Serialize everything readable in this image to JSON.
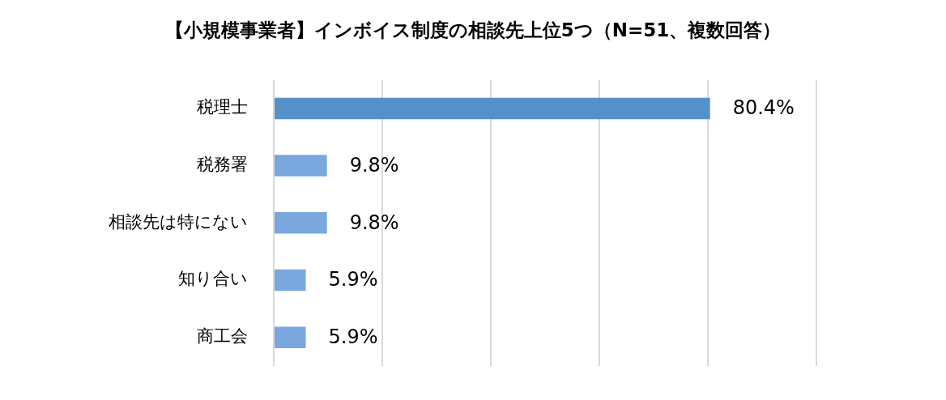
{
  "chart_data": {
    "type": "bar",
    "orientation": "horizontal",
    "title": "【小規模事業者】インボイス制度の相談先上位5つ（N=51、複数回答）",
    "categories": [
      "税理士",
      "税務署",
      "相談先は特にない",
      "知り合い",
      "商工会"
    ],
    "values": [
      80.4,
      9.8,
      9.8,
      5.9,
      5.9
    ],
    "colors": [
      "#5591c9",
      "#7aa7dd",
      "#7aa7dd",
      "#7aa7dd",
      "#7aa7dd"
    ],
    "value_labels": [
      "80.4%",
      "9.8%",
      "9.8%",
      "5.9%",
      "5.9%"
    ],
    "xlim": [
      0,
      100
    ],
    "xticks": [
      {
        "value": 0,
        "label": null
      },
      {
        "value": 20,
        "label": null
      },
      {
        "value": 40,
        "label": null
      },
      {
        "value": 60,
        "label": null
      },
      {
        "value": 80,
        "label": null
      },
      {
        "value": 100,
        "label": null
      }
    ],
    "grid": "x",
    "tick_labels": "y"
  }
}
